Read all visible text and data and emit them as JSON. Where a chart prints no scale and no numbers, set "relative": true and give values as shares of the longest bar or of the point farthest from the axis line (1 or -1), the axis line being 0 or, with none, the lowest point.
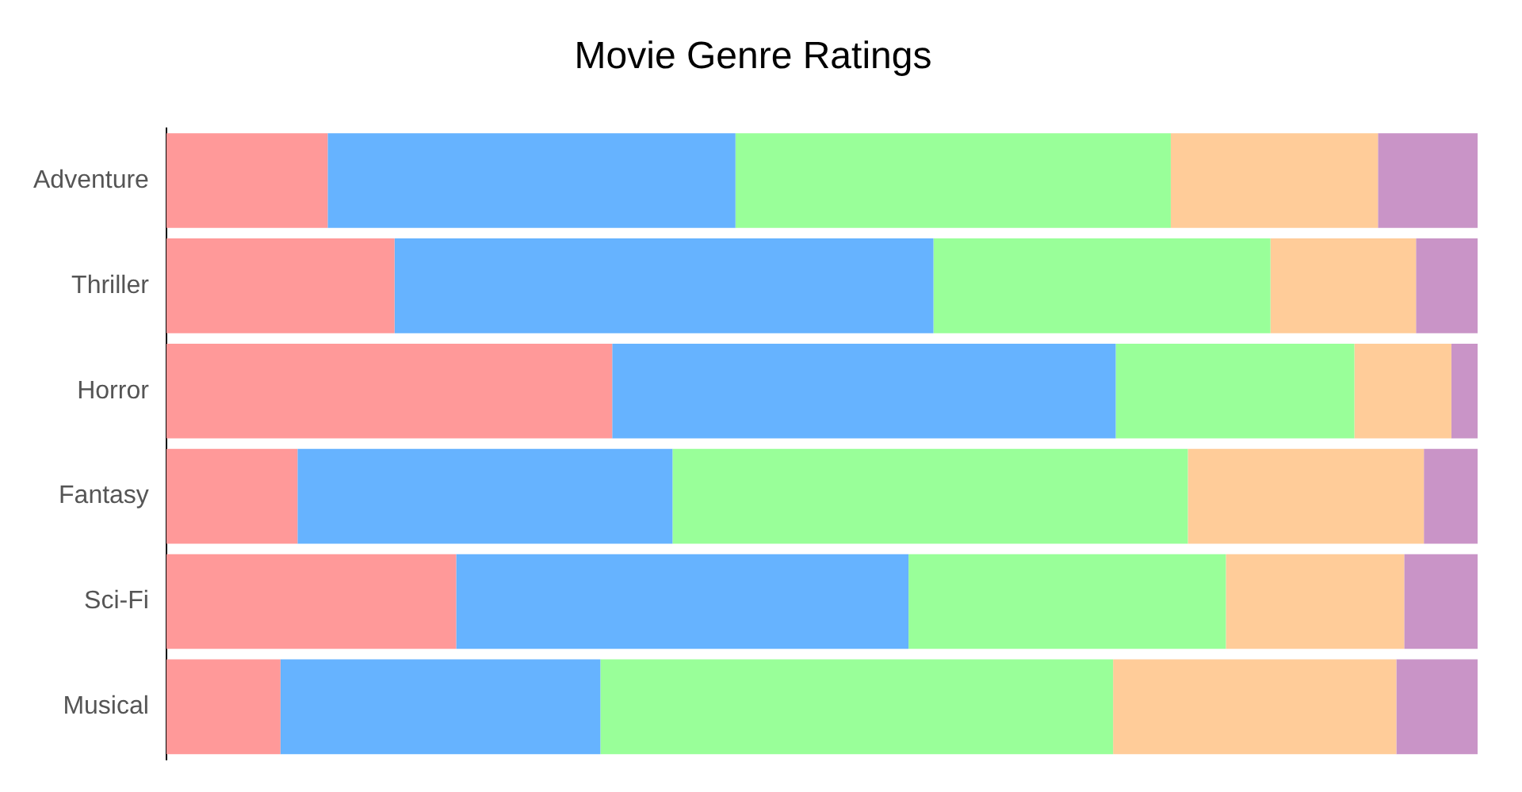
{
  "chart_data": {
    "type": "bar",
    "title": "Movie Genre Ratings",
    "orientation": "horizontal",
    "stacked": true,
    "relative": true,
    "categories": [
      "Adventure",
      "Thriller",
      "Horror",
      "Fantasy",
      "Sci-Fi",
      "Musical"
    ],
    "series": [
      {
        "color": "#ff9999",
        "values": [
          0.123,
          0.174,
          0.34,
          0.1,
          0.221,
          0.087
        ]
      },
      {
        "color": "#66b3ff",
        "values": [
          0.311,
          0.411,
          0.384,
          0.286,
          0.345,
          0.244
        ]
      },
      {
        "color": "#99ff99",
        "values": [
          0.332,
          0.257,
          0.182,
          0.393,
          0.242,
          0.391
        ]
      },
      {
        "color": "#ffcc99",
        "values": [
          0.158,
          0.111,
          0.074,
          0.18,
          0.136,
          0.216
        ]
      },
      {
        "color": "#c994c7",
        "values": [
          0.076,
          0.047,
          0.02,
          0.041,
          0.056,
          0.062
        ]
      }
    ]
  }
}
